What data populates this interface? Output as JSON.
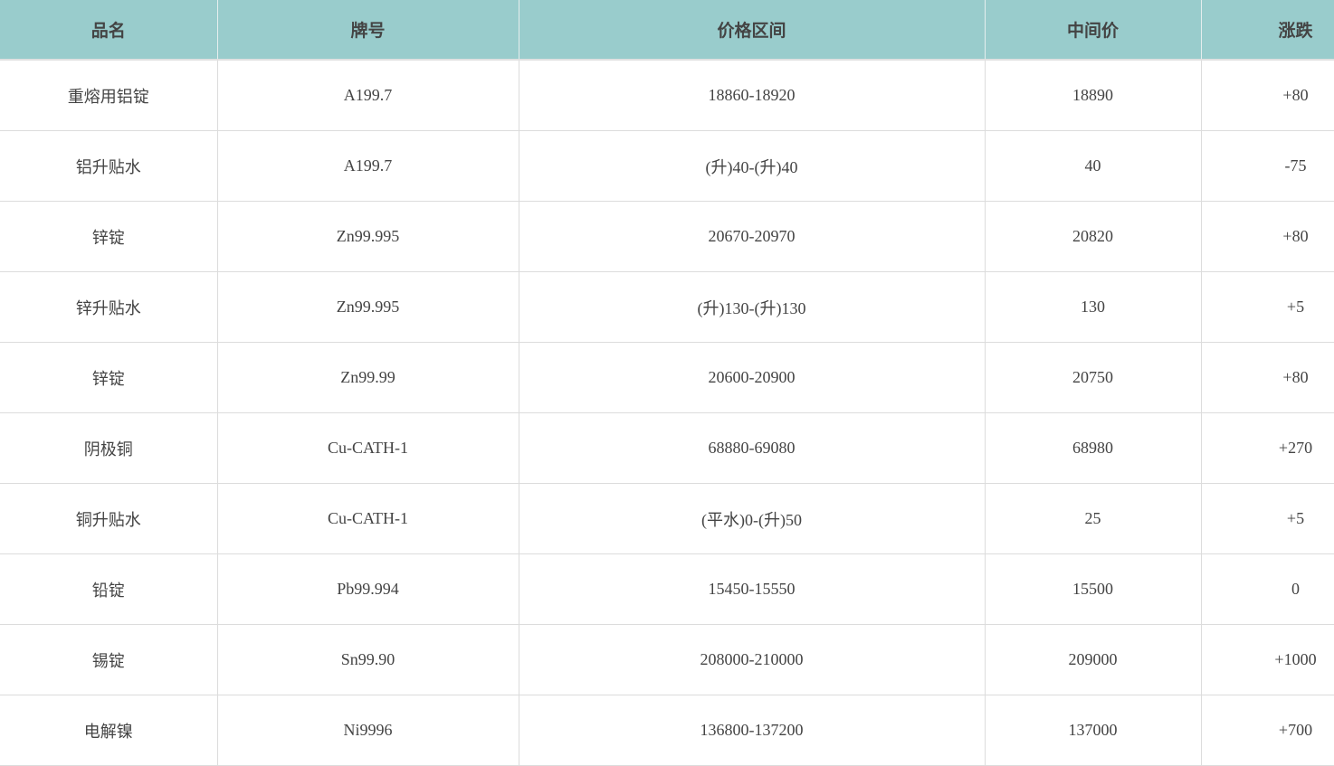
{
  "table": {
    "headers": [
      "品名",
      "牌号",
      "价格区间",
      "中间价",
      "涨跌"
    ],
    "rows": [
      [
        "重熔用铝锭",
        "A199.7",
        "18860-18920",
        "18890",
        "+80"
      ],
      [
        "铝升贴水",
        "A199.7",
        "(升)40-(升)40",
        "40",
        "-75"
      ],
      [
        "锌锭",
        "Zn99.995",
        "20670-20970",
        "20820",
        "+80"
      ],
      [
        "锌升贴水",
        "Zn99.995",
        "(升)130-(升)130",
        "130",
        "+5"
      ],
      [
        "锌锭",
        "Zn99.99",
        "20600-20900",
        "20750",
        "+80"
      ],
      [
        "阴极铜",
        "Cu-CATH-1",
        "68880-69080",
        "68980",
        "+270"
      ],
      [
        "铜升贴水",
        "Cu-CATH-1",
        "(平水)0-(升)50",
        "25",
        "+5"
      ],
      [
        "铅锭",
        "Pb99.994",
        "15450-15550",
        "15500",
        "0"
      ],
      [
        "锡锭",
        "Sn99.90",
        "208000-210000",
        "209000",
        "+1000"
      ],
      [
        "电解镍",
        "Ni9996",
        "136800-137200",
        "137000",
        "+700"
      ]
    ]
  },
  "colors": {
    "header_bg": "#99cccc"
  }
}
